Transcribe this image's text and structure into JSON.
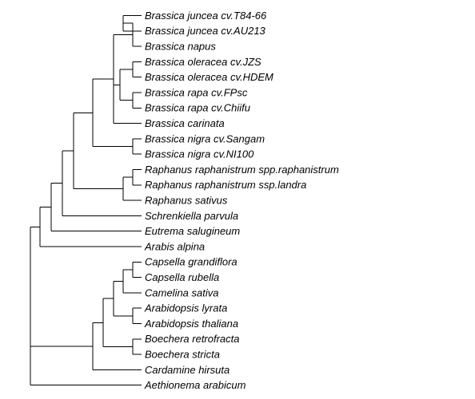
{
  "taxa": [
    "Brassica juncea cv.T84-66",
    "Brassica juncea cv.AU213",
    "Brassica napus",
    "Brassica oleracea cv.JZS",
    "Brassica oleracea cv.HDEM",
    "Brassica rapa cv.FPsc",
    "Brassica rapa cv.Chiifu",
    "Brassica carinata",
    "Brassica nigra cv.Sangam",
    "Brassica nigra cv.NI100",
    "Raphanus raphanistrum spp.raphanistrum",
    "Raphanus raphanistrum ssp.landra",
    "Raphanus sativus",
    "Schrenkiella parvula",
    "Eutrema salugineum",
    "Arabis alpina",
    "Capsella grandiflora",
    "Capsella rubella",
    "Camelina sativa",
    "Arabidopsis lyrata",
    "Arabidopsis thaliana",
    "Boechera retrofracta",
    "Boechera stricta",
    "Cardamine hirsuta",
    "Aethionema arabicum"
  ],
  "line_color": "#000000"
}
